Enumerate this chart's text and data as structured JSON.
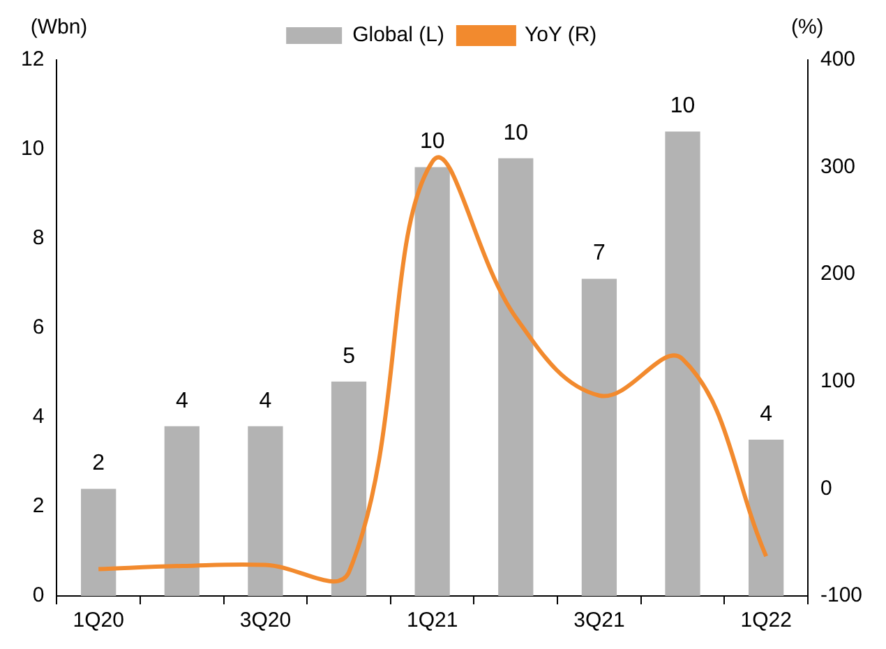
{
  "chart_data": {
    "type": "bar",
    "categories": [
      "1Q20",
      null,
      "3Q20",
      null,
      "1Q21",
      null,
      "3Q21",
      null,
      "1Q22"
    ],
    "ylabel": "(Wbn)",
    "y2label": "(%)",
    "series": [
      {
        "name": "Global (L)",
        "color": "#b3b3b3",
        "values": [
          2.4,
          3.8,
          3.8,
          4.8,
          9.6,
          9.8,
          7.1,
          10.4,
          3.5
        ],
        "value_labels": [
          "2",
          "4",
          "4",
          "5",
          "10",
          "10",
          "7",
          "10",
          "4"
        ]
      },
      {
        "name": "YoY (R)",
        "type": "line",
        "axis": "y2",
        "color": "#f28a2e",
        "values": [
          -75,
          -72,
          -71,
          -78,
          305,
          160,
          87,
          121,
          -63
        ]
      }
    ],
    "ylim": [
      0,
      12
    ],
    "yticks": [
      0,
      2,
      4,
      6,
      8,
      10,
      12
    ],
    "y2lim": [
      -100,
      400
    ],
    "y2ticks": [
      -100,
      0,
      100,
      200,
      300,
      400
    ],
    "legend": "top",
    "grid": false,
    "marker": "none",
    "line_style": "solid"
  }
}
